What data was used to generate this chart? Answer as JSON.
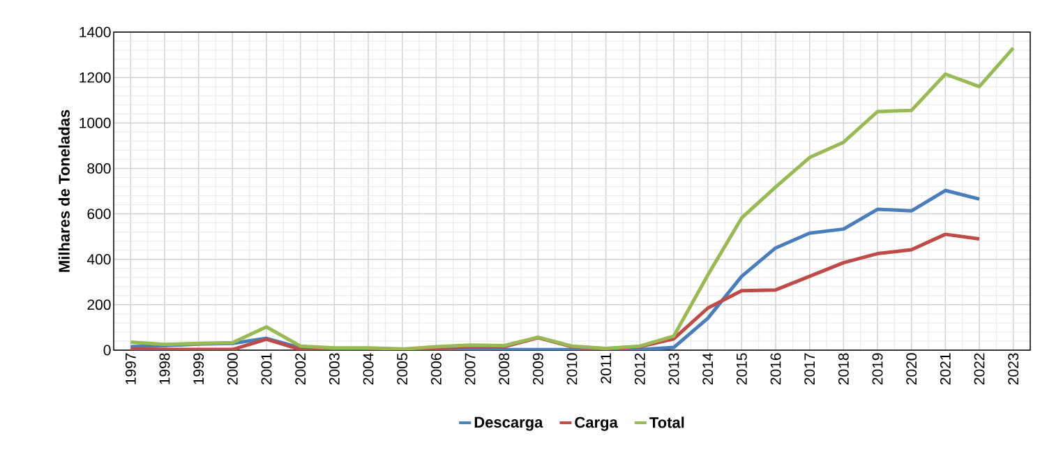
{
  "chart_data": {
    "type": "line",
    "ylabel": "Milhares de Toneladas",
    "categories": [
      "1997",
      "1998",
      "1999",
      "2000",
      "2001",
      "2002",
      "2003",
      "2004",
      "2005",
      "2006",
      "2007",
      "2008",
      "2009",
      "2010",
      "2011",
      "2012",
      "2013",
      "2014",
      "2015",
      "2016",
      "2017",
      "2018",
      "2019",
      "2020",
      "2021",
      "2022",
      "2023"
    ],
    "series": [
      {
        "name": "Descarga",
        "color": "#4a7ebb",
        "values": [
          15,
          20,
          27,
          30,
          52,
          10,
          5,
          null,
          3,
          5,
          3,
          2,
          2,
          2,
          null,
          2,
          12,
          140,
          325,
          450,
          515,
          533,
          620,
          613,
          703,
          665,
          null
        ]
      },
      {
        "name": "Carga",
        "color": "#be4b48",
        "values": [
          5,
          3,
          3,
          3,
          48,
          3,
          3,
          3,
          2,
          8,
          15,
          15,
          55,
          15,
          6,
          15,
          50,
          185,
          262,
          265,
          325,
          385,
          425,
          442,
          510,
          490,
          null
        ]
      },
      {
        "name": "Total",
        "color": "#98b954",
        "values": [
          35,
          25,
          30,
          33,
          102,
          18,
          10,
          10,
          5,
          15,
          22,
          20,
          57,
          18,
          8,
          18,
          62,
          330,
          582,
          718,
          848,
          915,
          1050,
          1055,
          1215,
          1160,
          1330
        ]
      }
    ],
    "ylim": [
      0,
      1400
    ],
    "yticks": [
      0,
      200,
      400,
      600,
      800,
      1000,
      1200,
      1400
    ],
    "grid": true,
    "legend": "bottom",
    "marker": "none",
    "line_style": "solid"
  }
}
